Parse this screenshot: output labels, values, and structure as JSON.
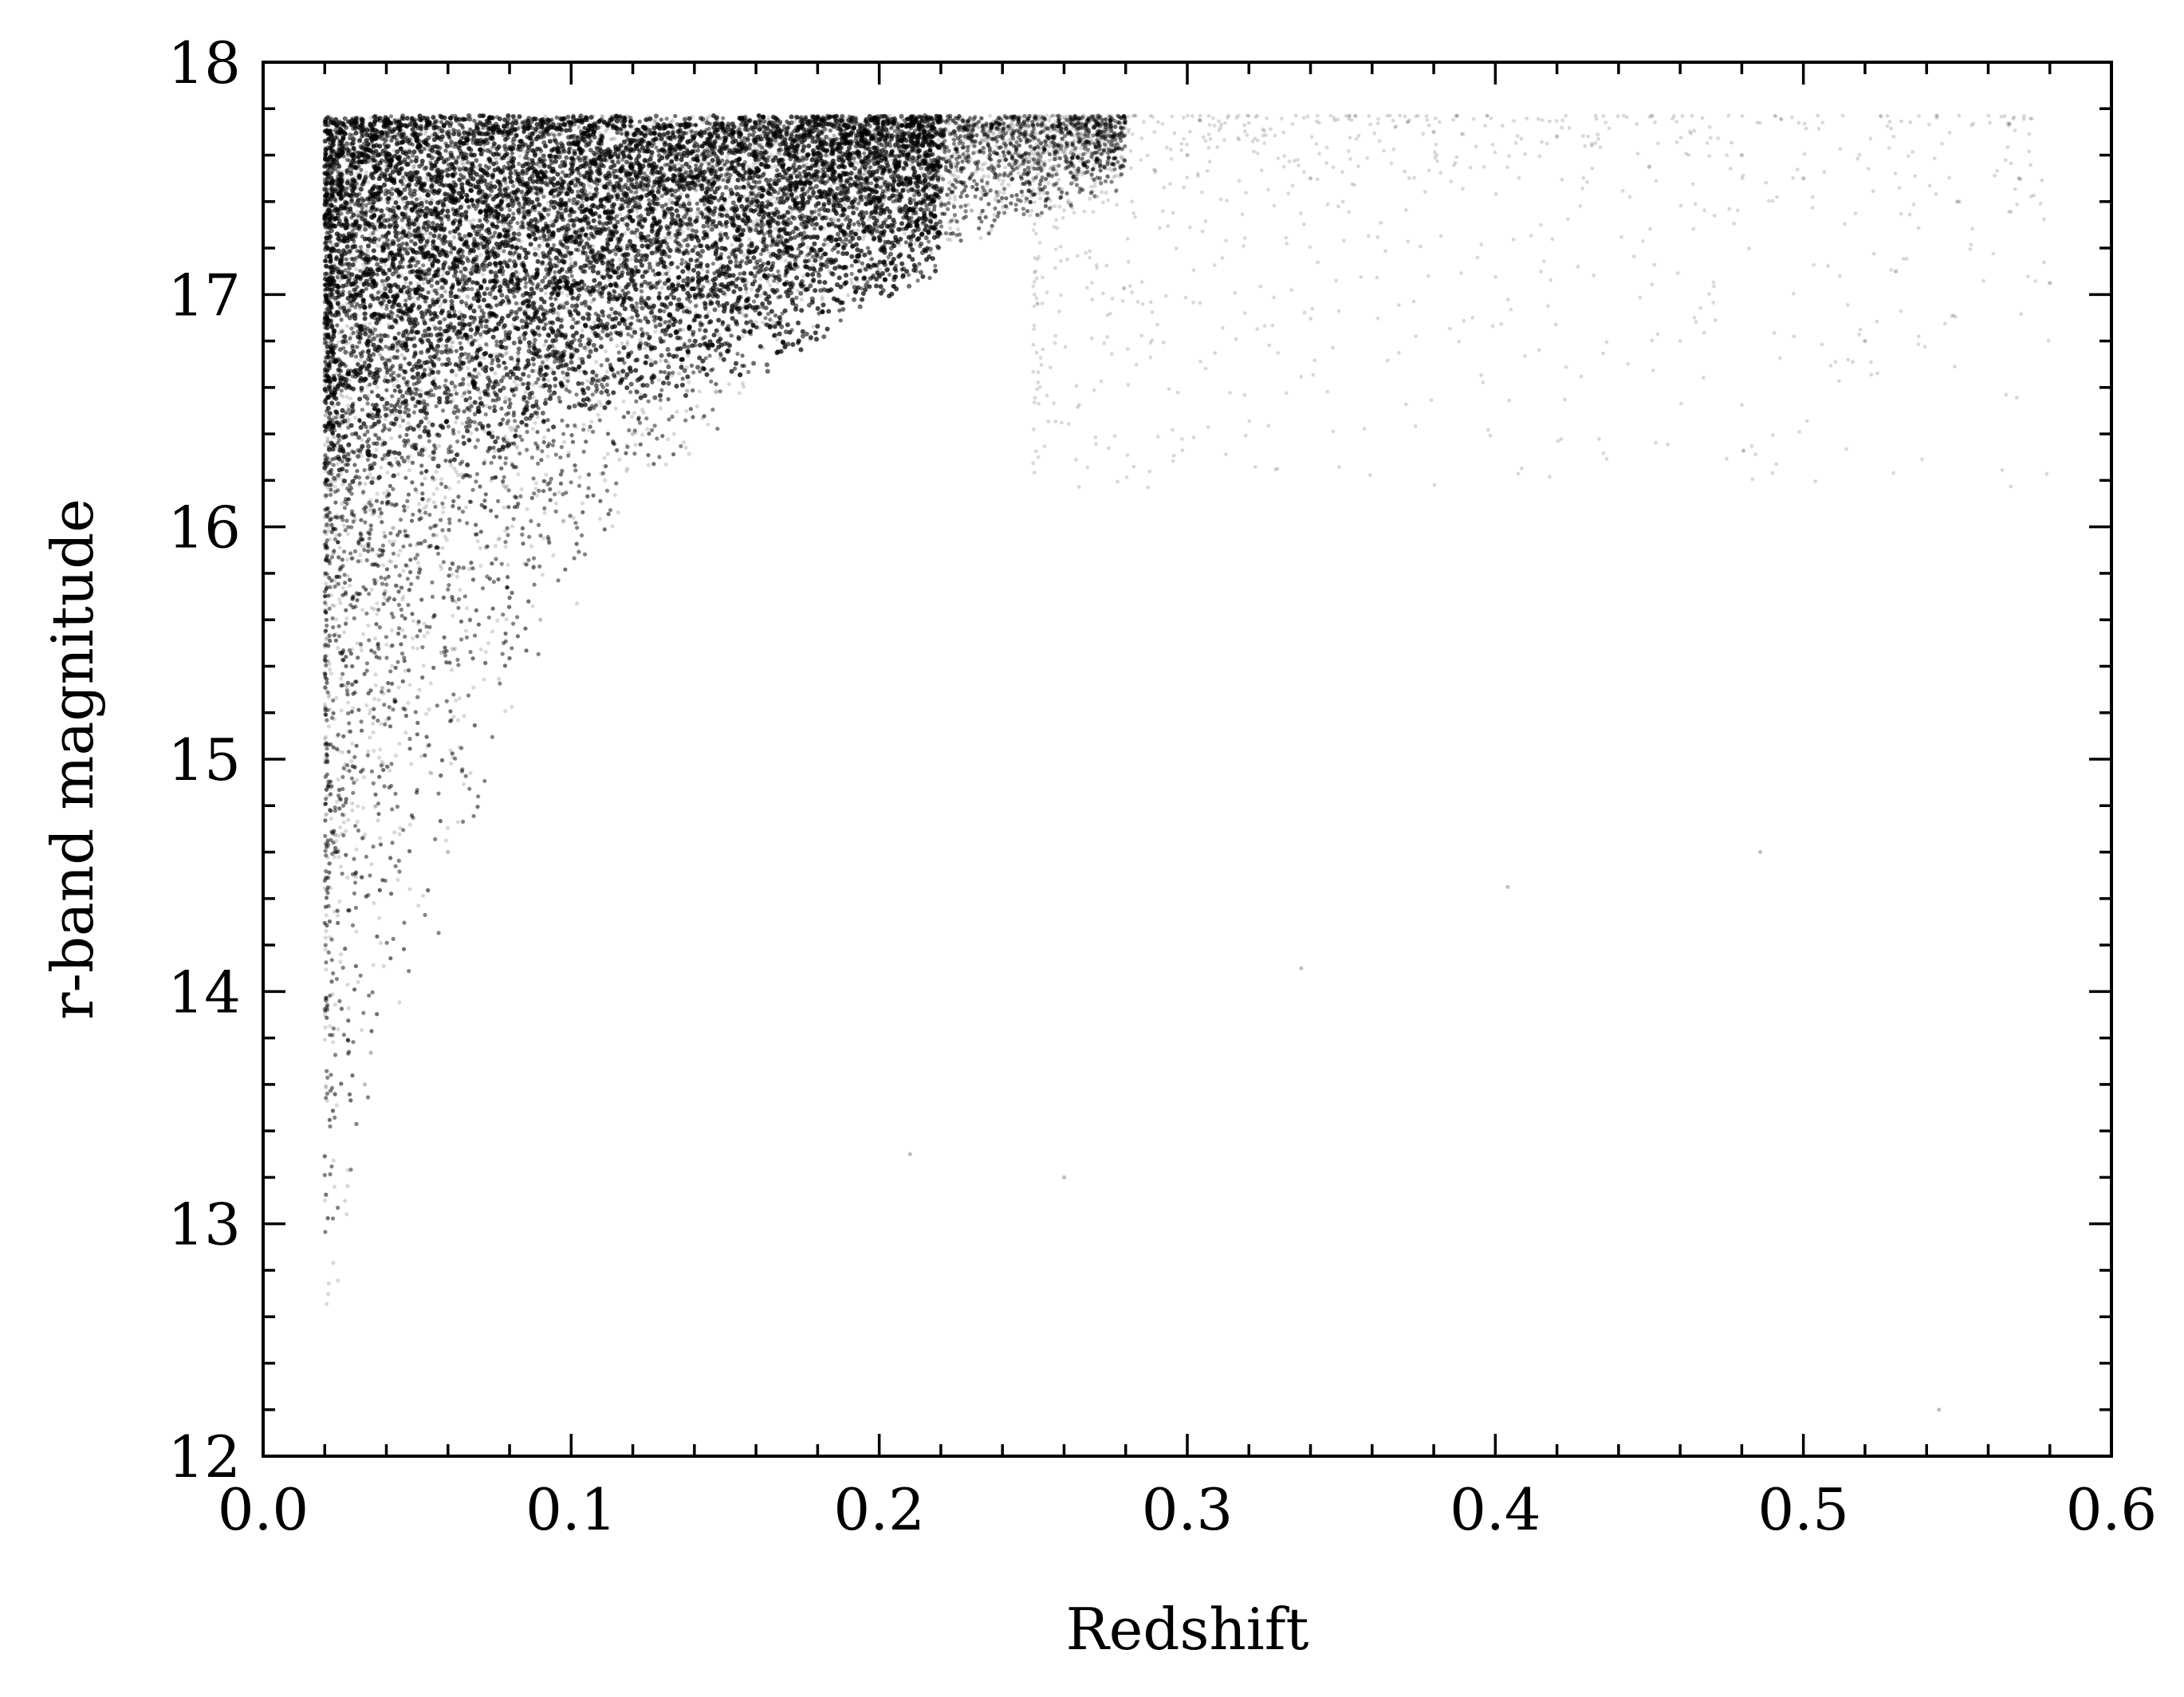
{
  "chart_data": {
    "type": "scatter",
    "title": "",
    "xlabel": "Redshift",
    "ylabel": "r-band magnitude",
    "xlim": [
      0.0,
      0.6
    ],
    "ylim": [
      12,
      18
    ],
    "x_ticks": [
      0.0,
      0.1,
      0.2,
      0.3,
      0.4,
      0.5,
      0.6
    ],
    "x_tick_labels": [
      "0.0",
      "0.1",
      "0.2",
      "0.3",
      "0.4",
      "0.5",
      "0.6"
    ],
    "y_ticks": [
      12,
      13,
      14,
      15,
      16,
      17,
      18
    ],
    "y_tick_labels": [
      "12",
      "13",
      "14",
      "15",
      "16",
      "17",
      "18"
    ],
    "grid": false,
    "legend": "none",
    "point_color": "#000000",
    "point_opacity": 0.15,
    "distribution": {
      "description_values": {
        "redshift_min": 0.02,
        "magnitude_limit": 17.77,
        "dense_core_redshift_range": [
          0.02,
          0.25
        ],
        "sparse_tail_redshift_max": 0.58,
        "bright_edge": [
          {
            "x": 0.02,
            "y": 12.2
          },
          {
            "x": 0.03,
            "y": 13.0
          },
          {
            "x": 0.05,
            "y": 14.0
          },
          {
            "x": 0.08,
            "y": 15.0
          },
          {
            "x": 0.12,
            "y": 16.0
          },
          {
            "x": 0.18,
            "y": 16.8
          },
          {
            "x": 0.25,
            "y": 17.3
          },
          {
            "x": 0.32,
            "y": 17.6
          }
        ],
        "points_sample": [
          {
            "x": 0.033,
            "y": 13.6
          },
          {
            "x": 0.06,
            "y": 14.6
          },
          {
            "x": 0.09,
            "y": 15.6
          },
          {
            "x": 0.12,
            "y": 16.4
          },
          {
            "x": 0.15,
            "y": 17.0
          },
          {
            "x": 0.2,
            "y": 17.3
          },
          {
            "x": 0.25,
            "y": 17.5
          },
          {
            "x": 0.3,
            "y": 17.6
          },
          {
            "x": 0.34,
            "y": 17.5
          },
          {
            "x": 0.38,
            "y": 17.7
          },
          {
            "x": 0.42,
            "y": 17.68
          },
          {
            "x": 0.45,
            "y": 17.55
          },
          {
            "x": 0.48,
            "y": 17.6
          },
          {
            "x": 0.5,
            "y": 17.5
          },
          {
            "x": 0.52,
            "y": 16.8
          },
          {
            "x": 0.53,
            "y": 17.1
          },
          {
            "x": 0.55,
            "y": 17.4
          },
          {
            "x": 0.57,
            "y": 17.5
          },
          {
            "x": 0.58,
            "y": 17.05
          },
          {
            "x": 0.486,
            "y": 14.6
          },
          {
            "x": 0.404,
            "y": 14.45
          },
          {
            "x": 0.544,
            "y": 12.2
          },
          {
            "x": 0.337,
            "y": 14.1
          },
          {
            "x": 0.26,
            "y": 13.2
          },
          {
            "x": 0.21,
            "y": 13.3
          }
        ]
      }
    }
  }
}
